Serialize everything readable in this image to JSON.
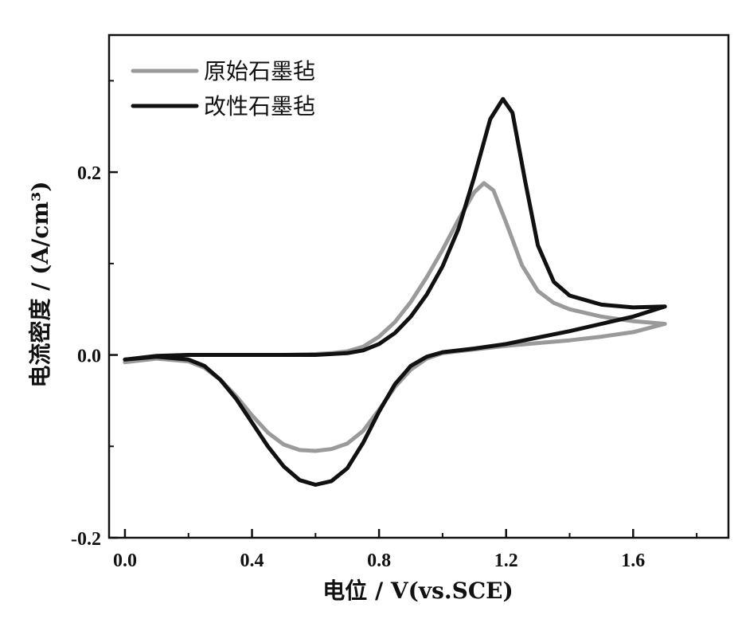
{
  "chart_data": {
    "type": "line",
    "title": "",
    "xlabel": "电位 / V(vs.SCE)",
    "ylabel": "电流密度 / (A/cm³)",
    "xlim": [
      -0.05,
      1.9
    ],
    "ylim": [
      -0.2,
      0.35
    ],
    "x_ticks": [
      0.0,
      0.4,
      0.8,
      1.2,
      1.6
    ],
    "x_tick_labels": [
      "0.0",
      "0.4",
      "0.8",
      "1.2",
      "1.6"
    ],
    "y_ticks": [
      -0.2,
      0.0,
      0.2
    ],
    "y_tick_labels": [
      "-0.2",
      "0.0",
      "0.2"
    ],
    "grid": false,
    "legend_position": "top-left",
    "series": [
      {
        "name": "原始石墨毡",
        "color": "#9a9a9a",
        "forward": [
          [
            0.0,
            -0.008
          ],
          [
            0.1,
            -0.002
          ],
          [
            0.2,
            0.0
          ],
          [
            0.3,
            0.0
          ],
          [
            0.4,
            0.0
          ],
          [
            0.5,
            0.0
          ],
          [
            0.6,
            0.001
          ],
          [
            0.65,
            0.002
          ],
          [
            0.7,
            0.004
          ],
          [
            0.75,
            0.009
          ],
          [
            0.8,
            0.02
          ],
          [
            0.85,
            0.036
          ],
          [
            0.9,
            0.058
          ],
          [
            0.95,
            0.085
          ],
          [
            1.0,
            0.115
          ],
          [
            1.05,
            0.148
          ],
          [
            1.1,
            0.178
          ],
          [
            1.13,
            0.188
          ],
          [
            1.16,
            0.18
          ],
          [
            1.2,
            0.145
          ],
          [
            1.25,
            0.098
          ],
          [
            1.3,
            0.07
          ],
          [
            1.35,
            0.057
          ],
          [
            1.4,
            0.05
          ],
          [
            1.5,
            0.042
          ],
          [
            1.6,
            0.037
          ],
          [
            1.7,
            0.034
          ]
        ],
        "reverse": [
          [
            1.7,
            0.03
          ],
          [
            1.6,
            0.025
          ],
          [
            1.5,
            0.02
          ],
          [
            1.4,
            0.016
          ],
          [
            1.3,
            0.013
          ],
          [
            1.2,
            0.01
          ],
          [
            1.1,
            0.006
          ],
          [
            1.0,
            0.002
          ],
          [
            0.95,
            -0.004
          ],
          [
            0.9,
            -0.016
          ],
          [
            0.85,
            -0.035
          ],
          [
            0.8,
            -0.06
          ],
          [
            0.75,
            -0.083
          ],
          [
            0.7,
            -0.097
          ],
          [
            0.65,
            -0.103
          ],
          [
            0.6,
            -0.105
          ],
          [
            0.55,
            -0.104
          ],
          [
            0.5,
            -0.098
          ],
          [
            0.45,
            -0.085
          ],
          [
            0.4,
            -0.066
          ],
          [
            0.35,
            -0.045
          ],
          [
            0.3,
            -0.027
          ],
          [
            0.25,
            -0.014
          ],
          [
            0.2,
            -0.007
          ],
          [
            0.1,
            -0.004
          ],
          [
            0.0,
            -0.008
          ]
        ]
      },
      {
        "name": "改性石墨毡",
        "color": "#111111",
        "forward": [
          [
            0.0,
            -0.005
          ],
          [
            0.1,
            -0.001
          ],
          [
            0.2,
            0.0
          ],
          [
            0.3,
            0.0
          ],
          [
            0.4,
            0.0
          ],
          [
            0.5,
            0.0
          ],
          [
            0.6,
            0.0
          ],
          [
            0.65,
            0.001
          ],
          [
            0.7,
            0.002
          ],
          [
            0.75,
            0.005
          ],
          [
            0.8,
            0.012
          ],
          [
            0.85,
            0.024
          ],
          [
            0.9,
            0.042
          ],
          [
            0.95,
            0.066
          ],
          [
            1.0,
            0.097
          ],
          [
            1.05,
            0.138
          ],
          [
            1.1,
            0.195
          ],
          [
            1.15,
            0.258
          ],
          [
            1.19,
            0.28
          ],
          [
            1.22,
            0.265
          ],
          [
            1.26,
            0.19
          ],
          [
            1.3,
            0.12
          ],
          [
            1.35,
            0.08
          ],
          [
            1.4,
            0.065
          ],
          [
            1.5,
            0.055
          ],
          [
            1.6,
            0.052
          ],
          [
            1.7,
            0.053
          ]
        ],
        "reverse": [
          [
            1.7,
            0.05
          ],
          [
            1.6,
            0.042
          ],
          [
            1.5,
            0.034
          ],
          [
            1.4,
            0.026
          ],
          [
            1.3,
            0.019
          ],
          [
            1.2,
            0.012
          ],
          [
            1.1,
            0.007
          ],
          [
            1.0,
            0.003
          ],
          [
            0.95,
            -0.002
          ],
          [
            0.9,
            -0.012
          ],
          [
            0.85,
            -0.032
          ],
          [
            0.8,
            -0.062
          ],
          [
            0.75,
            -0.096
          ],
          [
            0.7,
            -0.124
          ],
          [
            0.65,
            -0.138
          ],
          [
            0.6,
            -0.142
          ],
          [
            0.55,
            -0.137
          ],
          [
            0.5,
            -0.122
          ],
          [
            0.45,
            -0.1
          ],
          [
            0.4,
            -0.074
          ],
          [
            0.35,
            -0.048
          ],
          [
            0.3,
            -0.027
          ],
          [
            0.25,
            -0.012
          ],
          [
            0.2,
            -0.005
          ],
          [
            0.1,
            -0.002
          ],
          [
            0.0,
            -0.005
          ]
        ]
      }
    ]
  }
}
